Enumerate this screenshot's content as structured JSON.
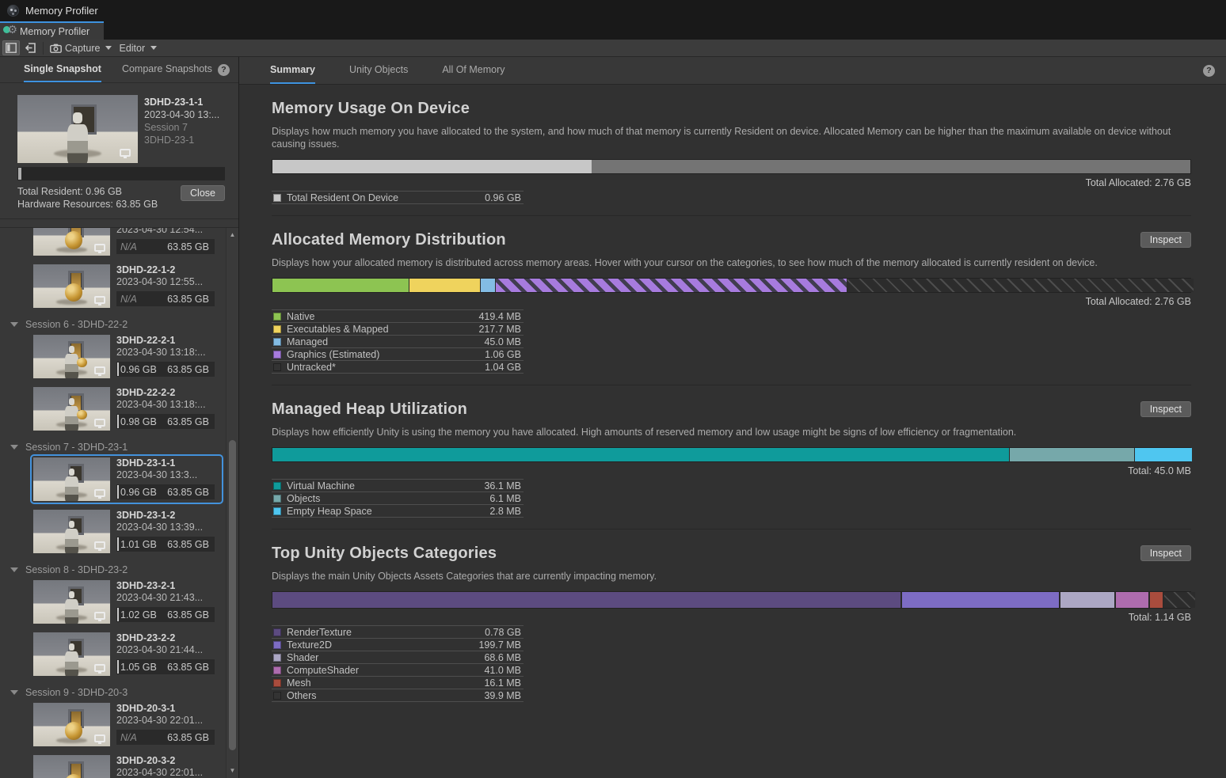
{
  "colors": {
    "accent": "#3E93E0",
    "selection": "#4392DC"
  },
  "window": {
    "title": "Memory Profiler"
  },
  "doc_tab": {
    "label": "Memory Profiler"
  },
  "toolbar": {
    "capture": "Capture",
    "editor": "Editor"
  },
  "sidebar": {
    "tabs": [
      {
        "label": "Single Snapshot",
        "active": true
      },
      {
        "label": "Compare Snapshots",
        "active": false
      }
    ],
    "help": "?",
    "open_snapshot": {
      "name": "3DHD-23-1-1",
      "date": "2023-04-30 13:...",
      "session": "Session 7",
      "platform": "3DHD-23-1",
      "total_resident": "Total Resident: 0.96 GB",
      "hardware_resources": "Hardware Resources: 63.85 GB",
      "close_label": "Close"
    },
    "list": [
      {
        "type": "item",
        "name": "",
        "date": "2023-04-30 12:54...",
        "resident": "N/A",
        "hardware": "63.85 GB",
        "thumb": "ball",
        "partial": true
      },
      {
        "type": "item",
        "name": "3DHD-22-1-2",
        "date": "2023-04-30 12:55...",
        "resident": "N/A",
        "hardware": "63.85 GB",
        "thumb": "ball"
      },
      {
        "type": "header",
        "label": "Session 6 - 3DHD-22-2"
      },
      {
        "type": "item",
        "name": "3DHD-22-2-1",
        "date": "2023-04-30 13:18:...",
        "resident": "0.96 GB",
        "hardware": "63.85 GB",
        "thumb": "robot-ball"
      },
      {
        "type": "item",
        "name": "3DHD-22-2-2",
        "date": "2023-04-30 13:18:...",
        "resident": "0.98 GB",
        "hardware": "63.85 GB",
        "thumb": "robot-ball"
      },
      {
        "type": "header",
        "label": "Session 7 - 3DHD-23-1"
      },
      {
        "type": "item",
        "name": "3DHD-23-1-1",
        "date": "2023-04-30 13:3...",
        "resident": "0.96 GB",
        "hardware": "63.85 GB",
        "thumb": "robot",
        "selected": true
      },
      {
        "type": "item",
        "name": "3DHD-23-1-2",
        "date": "2023-04-30 13:39...",
        "resident": "1.01 GB",
        "hardware": "63.85 GB",
        "thumb": "robot"
      },
      {
        "type": "header",
        "label": "Session 8 - 3DHD-23-2"
      },
      {
        "type": "item",
        "name": "3DHD-23-2-1",
        "date": "2023-04-30 21:43...",
        "resident": "1.02 GB",
        "hardware": "63.85 GB",
        "thumb": "robot"
      },
      {
        "type": "item",
        "name": "3DHD-23-2-2",
        "date": "2023-04-30 21:44...",
        "resident": "1.05 GB",
        "hardware": "63.85 GB",
        "thumb": "robot"
      },
      {
        "type": "header",
        "label": "Session 9 - 3DHD-20-3"
      },
      {
        "type": "item",
        "name": "3DHD-20-3-1",
        "date": "2023-04-30 22:01...",
        "resident": "N/A",
        "hardware": "63.85 GB",
        "thumb": "ball"
      },
      {
        "type": "item",
        "name": "3DHD-20-3-2",
        "date": "2023-04-30 22:01...",
        "resident": "N/A",
        "hardware": "63.85 GB",
        "thumb": "ball"
      }
    ]
  },
  "main": {
    "tabs": [
      {
        "label": "Summary",
        "active": true
      },
      {
        "label": "Unity Objects",
        "active": false
      },
      {
        "label": "All Of Memory",
        "active": false
      }
    ],
    "help": "?",
    "sections": [
      {
        "id": "usage",
        "title": "Memory Usage On Device",
        "inspect": null,
        "description": "Displays how much memory you have allocated to the system, and how much of that memory is currently Resident on device. Allocated Memory can be higher than the maximum available on device without causing issues.",
        "total": "Total Allocated: 2.76 GB",
        "segments": [
          {
            "name": "Total Resident On Device",
            "pct": 34.8,
            "color": "#C7C7C7"
          },
          {
            "name": "Allocated",
            "pct": 65.2,
            "color": "#747474"
          }
        ],
        "legend": [
          {
            "label": "Total Resident On Device",
            "value": "0.96 GB",
            "swatch": "#C7C7C7"
          }
        ]
      },
      {
        "id": "allocated",
        "title": "Allocated Memory Distribution",
        "inspect": "Inspect",
        "description": "Displays how your allocated memory is distributed across memory areas. Hover with your cursor on the categories, to see how much of the memory allocated is currently resident on device.",
        "total": "Total Allocated: 2.76 GB",
        "segments": [
          {
            "name": "Native",
            "pct": 14.8,
            "color": "#8DC452"
          },
          {
            "name": "Executables & Mapped",
            "pct": 7.7,
            "color": "#EFD35D"
          },
          {
            "name": "Managed",
            "pct": 1.6,
            "color": "#83BCE4"
          },
          {
            "name": "Graphics (Estimated)",
            "pct": 38.2,
            "hatch": "purple"
          },
          {
            "name": "Untracked",
            "pct": 37.7,
            "hatch": "dark"
          }
        ],
        "legend": [
          {
            "label": "Native",
            "value": "419.4 MB",
            "swatch": "#8DC452"
          },
          {
            "label": "Executables & Mapped",
            "value": "217.7 MB",
            "swatch": "#EFD35D"
          },
          {
            "label": "Managed",
            "value": "45.0 MB",
            "swatch": "#83BCE4"
          },
          {
            "label": "Graphics (Estimated)",
            "value": "1.06 GB",
            "swatch": "#A77BDE"
          },
          {
            "label": "Untracked*",
            "value": "1.04 GB",
            "swatch": "#333333"
          }
        ]
      },
      {
        "id": "managed-heap",
        "title": "Managed Heap Utilization",
        "inspect": "Inspect",
        "description": "Displays how efficiently Unity is using the memory you have allocated. High amounts of reserved memory and low usage might be signs of low efficiency or fragmentation.",
        "total": "Total: 45.0 MB",
        "segments": [
          {
            "name": "Virtual Machine",
            "pct": 80.2,
            "color": "#0F9B9B"
          },
          {
            "name": "Objects",
            "pct": 13.6,
            "color": "#76A8AA"
          },
          {
            "name": "Empty Heap Space",
            "pct": 6.2,
            "color": "#4FC6F0"
          }
        ],
        "legend": [
          {
            "label": "Virtual Machine",
            "value": "36.1 MB",
            "swatch": "#0F9B9B"
          },
          {
            "label": "Objects",
            "value": "6.1 MB",
            "swatch": "#76A8AA"
          },
          {
            "label": "Empty Heap Space",
            "value": "2.8 MB",
            "swatch": "#4FC6F0"
          }
        ]
      },
      {
        "id": "top-unity",
        "title": "Top Unity Objects Categories",
        "inspect": "Inspect",
        "description": "Displays the main Unity Objects Assets Categories that are currently impacting memory.",
        "total": "Total: 1.14 GB",
        "segments": [
          {
            "name": "RenderTexture",
            "pct": 68.4,
            "color": "#5C4B80"
          },
          {
            "name": "Texture2D",
            "pct": 17.1,
            "color": "#7D6CC4"
          },
          {
            "name": "Shader",
            "pct": 5.9,
            "color": "#ACA7C4"
          },
          {
            "name": "ComputeShader",
            "pct": 3.5,
            "color": "#AE6CAE"
          },
          {
            "name": "Mesh",
            "pct": 1.4,
            "color": "#A94C3D"
          },
          {
            "name": "Others",
            "pct": 3.4,
            "hatch": "dark"
          }
        ],
        "legend": [
          {
            "label": "RenderTexture",
            "value": "0.78 GB",
            "swatch": "#5C4B80"
          },
          {
            "label": "Texture2D",
            "value": "199.7 MB",
            "swatch": "#7D6CC4"
          },
          {
            "label": "Shader",
            "value": "68.6 MB",
            "swatch": "#ACA7C4"
          },
          {
            "label": "ComputeShader",
            "value": "41.0 MB",
            "swatch": "#AE6CAE"
          },
          {
            "label": "Mesh",
            "value": "16.1 MB",
            "swatch": "#A94C3D"
          },
          {
            "label": "Others",
            "value": "39.9 MB",
            "swatch": "#333333"
          }
        ]
      }
    ]
  }
}
